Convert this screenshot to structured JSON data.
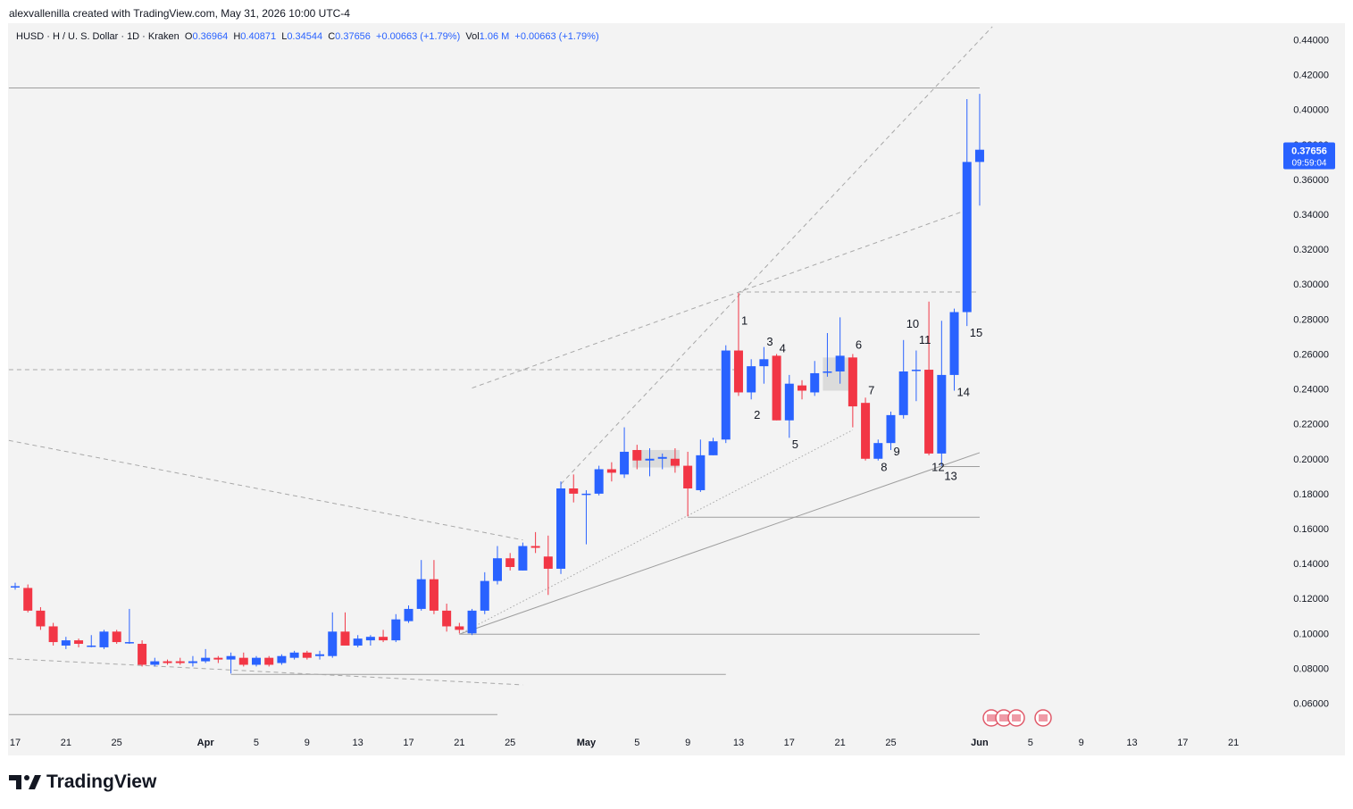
{
  "header": {
    "created_by": "alexvallenilla created with TradingView.com, May 31, 2026 10:00 UTC-4"
  },
  "legend": {
    "symbol": "HUSD · H / U. S. Dollar · 1D · Kraken",
    "o_label": "O",
    "o_value": "0.36964",
    "h_label": "H",
    "h_value": "0.40871",
    "l_label": "L",
    "l_value": "0.34544",
    "c_label": "C",
    "c_value": "0.37656",
    "change": "+0.00663 (+1.79%)",
    "vol_label": "Vol",
    "vol_value": "1.06 M",
    "vol_change": "+0.00663 (+1.79%)"
  },
  "brand": {
    "name": "TradingView"
  },
  "price_tag": {
    "price": "0.37656",
    "countdown": "09:59:04"
  },
  "colors": {
    "up": "#2962ff",
    "down": "#f23645",
    "grid_text": "#131722",
    "lines": "#9e9e9e"
  },
  "chart_data": {
    "type": "candlestick",
    "y_axis_side": "right",
    "ylim": [
      0.05,
      0.45
    ],
    "y_ticks": [
      "0.44000",
      "0.42000",
      "0.40000",
      "0.38000",
      "0.36000",
      "0.34000",
      "0.32000",
      "0.30000",
      "0.28000",
      "0.26000",
      "0.24000",
      "0.22000",
      "0.20000",
      "0.18000",
      "0.16000",
      "0.14000",
      "0.12000",
      "0.10000",
      "0.08000",
      "0.06000"
    ],
    "x_ticks": [
      {
        "label": "17",
        "bold": false,
        "idx": 0
      },
      {
        "label": "21",
        "bold": false,
        "idx": 4
      },
      {
        "label": "25",
        "bold": false,
        "idx": 8
      },
      {
        "label": "Apr",
        "bold": true,
        "idx": 15
      },
      {
        "label": "5",
        "bold": false,
        "idx": 19
      },
      {
        "label": "9",
        "bold": false,
        "idx": 23
      },
      {
        "label": "13",
        "bold": false,
        "idx": 27
      },
      {
        "label": "17",
        "bold": false,
        "idx": 31
      },
      {
        "label": "21",
        "bold": false,
        "idx": 35
      },
      {
        "label": "25",
        "bold": false,
        "idx": 39
      },
      {
        "label": "May",
        "bold": true,
        "idx": 45
      },
      {
        "label": "5",
        "bold": false,
        "idx": 49
      },
      {
        "label": "9",
        "bold": false,
        "idx": 53
      },
      {
        "label": "13",
        "bold": false,
        "idx": 57
      },
      {
        "label": "17",
        "bold": false,
        "idx": 61
      },
      {
        "label": "21",
        "bold": false,
        "idx": 65
      },
      {
        "label": "25",
        "bold": false,
        "idx": 69
      },
      {
        "label": "Jun",
        "bold": true,
        "idx": 76
      },
      {
        "label": "5",
        "bold": false,
        "idx": 80
      },
      {
        "label": "9",
        "bold": false,
        "idx": 84
      },
      {
        "label": "13",
        "bold": false,
        "idx": 88
      },
      {
        "label": "17",
        "bold": false,
        "idx": 92
      },
      {
        "label": "21",
        "bold": false,
        "idx": 96
      }
    ],
    "candles": [
      {
        "i": 0,
        "o": 0.127,
        "h": 0.129,
        "l": 0.125,
        "c": 0.127
      },
      {
        "i": 1,
        "o": 0.126,
        "h": 0.128,
        "l": 0.112,
        "c": 0.113
      },
      {
        "i": 2,
        "o": 0.113,
        "h": 0.115,
        "l": 0.102,
        "c": 0.104
      },
      {
        "i": 3,
        "o": 0.104,
        "h": 0.106,
        "l": 0.093,
        "c": 0.095
      },
      {
        "i": 4,
        "o": 0.093,
        "h": 0.098,
        "l": 0.091,
        "c": 0.096
      },
      {
        "i": 5,
        "o": 0.096,
        "h": 0.097,
        "l": 0.092,
        "c": 0.094
      },
      {
        "i": 6,
        "o": 0.093,
        "h": 0.099,
        "l": 0.092,
        "c": 0.093
      },
      {
        "i": 7,
        "o": 0.092,
        "h": 0.102,
        "l": 0.091,
        "c": 0.101
      },
      {
        "i": 8,
        "o": 0.101,
        "h": 0.102,
        "l": 0.094,
        "c": 0.095
      },
      {
        "i": 9,
        "o": 0.095,
        "h": 0.114,
        "l": 0.094,
        "c": 0.095
      },
      {
        "i": 10,
        "o": 0.094,
        "h": 0.096,
        "l": 0.081,
        "c": 0.082
      },
      {
        "i": 11,
        "o": 0.082,
        "h": 0.086,
        "l": 0.081,
        "c": 0.084
      },
      {
        "i": 12,
        "o": 0.084,
        "h": 0.085,
        "l": 0.082,
        "c": 0.083
      },
      {
        "i": 13,
        "o": 0.084,
        "h": 0.086,
        "l": 0.082,
        "c": 0.083
      },
      {
        "i": 14,
        "o": 0.083,
        "h": 0.087,
        "l": 0.081,
        "c": 0.084
      },
      {
        "i": 15,
        "o": 0.084,
        "h": 0.091,
        "l": 0.083,
        "c": 0.086
      },
      {
        "i": 16,
        "o": 0.086,
        "h": 0.087,
        "l": 0.083,
        "c": 0.085
      },
      {
        "i": 17,
        "o": 0.085,
        "h": 0.089,
        "l": 0.077,
        "c": 0.087
      },
      {
        "i": 18,
        "o": 0.086,
        "h": 0.089,
        "l": 0.081,
        "c": 0.082
      },
      {
        "i": 19,
        "o": 0.082,
        "h": 0.087,
        "l": 0.081,
        "c": 0.086
      },
      {
        "i": 20,
        "o": 0.086,
        "h": 0.087,
        "l": 0.081,
        "c": 0.082
      },
      {
        "i": 21,
        "o": 0.083,
        "h": 0.088,
        "l": 0.082,
        "c": 0.087
      },
      {
        "i": 22,
        "o": 0.086,
        "h": 0.09,
        "l": 0.085,
        "c": 0.089
      },
      {
        "i": 23,
        "o": 0.089,
        "h": 0.09,
        "l": 0.085,
        "c": 0.086
      },
      {
        "i": 24,
        "o": 0.087,
        "h": 0.09,
        "l": 0.085,
        "c": 0.088
      },
      {
        "i": 25,
        "o": 0.087,
        "h": 0.112,
        "l": 0.086,
        "c": 0.101
      },
      {
        "i": 26,
        "o": 0.101,
        "h": 0.112,
        "l": 0.095,
        "c": 0.093
      },
      {
        "i": 27,
        "o": 0.093,
        "h": 0.099,
        "l": 0.092,
        "c": 0.097
      },
      {
        "i": 28,
        "o": 0.096,
        "h": 0.099,
        "l": 0.093,
        "c": 0.098
      },
      {
        "i": 29,
        "o": 0.098,
        "h": 0.102,
        "l": 0.095,
        "c": 0.096
      },
      {
        "i": 30,
        "o": 0.096,
        "h": 0.111,
        "l": 0.095,
        "c": 0.108
      },
      {
        "i": 31,
        "o": 0.107,
        "h": 0.116,
        "l": 0.106,
        "c": 0.114
      },
      {
        "i": 32,
        "o": 0.114,
        "h": 0.142,
        "l": 0.113,
        "c": 0.131
      },
      {
        "i": 33,
        "o": 0.131,
        "h": 0.142,
        "l": 0.111,
        "c": 0.113
      },
      {
        "i": 34,
        "o": 0.113,
        "h": 0.117,
        "l": 0.101,
        "c": 0.104
      },
      {
        "i": 35,
        "o": 0.104,
        "h": 0.106,
        "l": 0.1,
        "c": 0.102
      },
      {
        "i": 36,
        "o": 0.1,
        "h": 0.114,
        "l": 0.099,
        "c": 0.113
      },
      {
        "i": 37,
        "o": 0.113,
        "h": 0.135,
        "l": 0.111,
        "c": 0.13
      },
      {
        "i": 38,
        "o": 0.13,
        "h": 0.15,
        "l": 0.128,
        "c": 0.143
      },
      {
        "i": 39,
        "o": 0.143,
        "h": 0.146,
        "l": 0.136,
        "c": 0.138
      },
      {
        "i": 40,
        "o": 0.136,
        "h": 0.152,
        "l": 0.136,
        "c": 0.15
      },
      {
        "i": 41,
        "o": 0.15,
        "h": 0.158,
        "l": 0.146,
        "c": 0.149
      },
      {
        "i": 42,
        "o": 0.144,
        "h": 0.156,
        "l": 0.122,
        "c": 0.137
      },
      {
        "i": 43,
        "o": 0.137,
        "h": 0.187,
        "l": 0.134,
        "c": 0.183
      },
      {
        "i": 44,
        "o": 0.183,
        "h": 0.191,
        "l": 0.175,
        "c": 0.18
      },
      {
        "i": 45,
        "o": 0.18,
        "h": 0.182,
        "l": 0.151,
        "c": 0.18
      },
      {
        "i": 46,
        "o": 0.18,
        "h": 0.196,
        "l": 0.179,
        "c": 0.194
      },
      {
        "i": 47,
        "o": 0.194,
        "h": 0.198,
        "l": 0.187,
        "c": 0.192
      },
      {
        "i": 48,
        "o": 0.191,
        "h": 0.218,
        "l": 0.189,
        "c": 0.204
      },
      {
        "i": 49,
        "o": 0.205,
        "h": 0.208,
        "l": 0.194,
        "c": 0.199
      },
      {
        "i": 50,
        "o": 0.199,
        "h": 0.206,
        "l": 0.19,
        "c": 0.2
      },
      {
        "i": 51,
        "o": 0.2,
        "h": 0.203,
        "l": 0.194,
        "c": 0.201
      },
      {
        "i": 52,
        "o": 0.2,
        "h": 0.206,
        "l": 0.192,
        "c": 0.196
      },
      {
        "i": 53,
        "o": 0.196,
        "h": 0.204,
        "l": 0.167,
        "c": 0.183
      },
      {
        "i": 54,
        "o": 0.182,
        "h": 0.211,
        "l": 0.181,
        "c": 0.202
      },
      {
        "i": 55,
        "o": 0.202,
        "h": 0.212,
        "l": 0.202,
        "c": 0.21
      },
      {
        "i": 56,
        "o": 0.211,
        "h": 0.265,
        "l": 0.209,
        "c": 0.262
      },
      {
        "i": 57,
        "o": 0.262,
        "h": 0.295,
        "l": 0.236,
        "c": 0.238
      },
      {
        "i": 58,
        "o": 0.238,
        "h": 0.257,
        "l": 0.234,
        "c": 0.253
      },
      {
        "i": 59,
        "o": 0.253,
        "h": 0.264,
        "l": 0.243,
        "c": 0.257
      },
      {
        "i": 60,
        "o": 0.259,
        "h": 0.26,
        "l": 0.222,
        "c": 0.222
      },
      {
        "i": 61,
        "o": 0.222,
        "h": 0.248,
        "l": 0.212,
        "c": 0.243
      },
      {
        "i": 62,
        "o": 0.242,
        "h": 0.245,
        "l": 0.234,
        "c": 0.239
      },
      {
        "i": 63,
        "o": 0.238,
        "h": 0.256,
        "l": 0.236,
        "c": 0.249
      },
      {
        "i": 64,
        "o": 0.25,
        "h": 0.272,
        "l": 0.247,
        "c": 0.25
      },
      {
        "i": 65,
        "o": 0.25,
        "h": 0.281,
        "l": 0.243,
        "c": 0.259
      },
      {
        "i": 66,
        "o": 0.258,
        "h": 0.26,
        "l": 0.218,
        "c": 0.23
      },
      {
        "i": 67,
        "o": 0.232,
        "h": 0.235,
        "l": 0.199,
        "c": 0.2
      },
      {
        "i": 68,
        "o": 0.2,
        "h": 0.211,
        "l": 0.199,
        "c": 0.209
      },
      {
        "i": 69,
        "o": 0.209,
        "h": 0.227,
        "l": 0.205,
        "c": 0.225
      },
      {
        "i": 70,
        "o": 0.225,
        "h": 0.268,
        "l": 0.223,
        "c": 0.25
      },
      {
        "i": 71,
        "o": 0.251,
        "h": 0.262,
        "l": 0.233,
        "c": 0.251
      },
      {
        "i": 72,
        "o": 0.251,
        "h": 0.29,
        "l": 0.202,
        "c": 0.203
      },
      {
        "i": 73,
        "o": 0.203,
        "h": 0.279,
        "l": 0.196,
        "c": 0.248
      },
      {
        "i": 74,
        "o": 0.248,
        "h": 0.286,
        "l": 0.239,
        "c": 0.284
      },
      {
        "i": 75,
        "o": 0.284,
        "h": 0.406,
        "l": 0.276,
        "c": 0.37
      },
      {
        "i": 76,
        "o": 0.37,
        "h": 0.409,
        "l": 0.345,
        "c": 0.377
      }
    ],
    "wave_labels": [
      {
        "label": "1",
        "i": 57,
        "price": 0.279
      },
      {
        "label": "2",
        "i": 58,
        "price": 0.225
      },
      {
        "label": "3",
        "i": 59,
        "price": 0.267
      },
      {
        "label": "4",
        "i": 60,
        "price": 0.263
      },
      {
        "label": "5",
        "i": 61,
        "price": 0.208
      },
      {
        "label": "6",
        "i": 66,
        "price": 0.265
      },
      {
        "label": "7",
        "i": 67,
        "price": 0.239
      },
      {
        "label": "8",
        "i": 68,
        "price": 0.195
      },
      {
        "label": "9",
        "i": 69,
        "price": 0.204
      },
      {
        "label": "10",
        "i": 70,
        "price": 0.277
      },
      {
        "label": "11",
        "i": 71,
        "price": 0.268
      },
      {
        "label": "12",
        "i": 72,
        "price": 0.195
      },
      {
        "label": "13",
        "i": 73,
        "price": 0.19
      },
      {
        "label": "14",
        "i": 74,
        "price": 0.238
      },
      {
        "label": "15",
        "i": 75,
        "price": 0.272
      }
    ],
    "trendlines": [
      {
        "kind": "solid",
        "from": {
          "i": -0.5,
          "p": 0.4124
        },
        "to": {
          "i": 76,
          "p": 0.4124
        }
      },
      {
        "kind": "solid",
        "from": {
          "i": 35,
          "p": 0.0995
        },
        "to": {
          "i": 76,
          "p": 0.0995
        }
      },
      {
        "kind": "solid",
        "from": {
          "i": 53,
          "p": 0.1665
        },
        "to": {
          "i": 76,
          "p": 0.1665
        }
      },
      {
        "kind": "solid",
        "from": {
          "i": 73,
          "p": 0.1955
        },
        "to": {
          "i": 76,
          "p": 0.1955
        }
      },
      {
        "kind": "solid",
        "from": {
          "i": 17,
          "p": 0.0765
        },
        "to": {
          "i": 56,
          "p": 0.0765
        }
      },
      {
        "kind": "solid",
        "from": {
          "i": -0.5,
          "p": 0.0535
        },
        "to": {
          "i": 38,
          "p": 0.0535
        }
      },
      {
        "kind": "solid",
        "from": {
          "i": 35,
          "p": 0.0995
        },
        "to": {
          "i": 76,
          "p": 0.2035
        }
      },
      {
        "kind": "dashed",
        "from": {
          "i": -0.5,
          "p": 0.251
        },
        "to": {
          "i": 57,
          "p": 0.251
        }
      },
      {
        "kind": "dashed",
        "from": {
          "i": 57,
          "p": 0.2955
        },
        "to": {
          "i": 76,
          "p": 0.2955
        }
      },
      {
        "kind": "dashed",
        "from": {
          "i": -0.5,
          "p": 0.2105
        },
        "to": {
          "i": 40,
          "p": 0.1535
        }
      },
      {
        "kind": "dashed",
        "from": {
          "i": -0.5,
          "p": 0.0855
        },
        "to": {
          "i": 40,
          "p": 0.0705
        }
      },
      {
        "kind": "dashed",
        "from": {
          "i": 36,
          "p": 0.2405
        },
        "to": {
          "i": 75,
          "p": 0.3425
        }
      },
      {
        "kind": "dashed",
        "from": {
          "i": 43,
          "p": 0.1855
        },
        "to": {
          "i": 77,
          "p": 0.4475
        }
      },
      {
        "kind": "dotted",
        "from": {
          "i": 35,
          "p": 0.0995
        },
        "to": {
          "i": 66,
          "p": 0.2165
        }
      }
    ],
    "boxes": [
      {
        "from_i": 49,
        "to_i": 52,
        "top": 0.205,
        "bottom": 0.195
      },
      {
        "from_i": 64,
        "to_i": 66,
        "top": 0.258,
        "bottom": 0.239
      }
    ],
    "event_icons_count": 4
  }
}
